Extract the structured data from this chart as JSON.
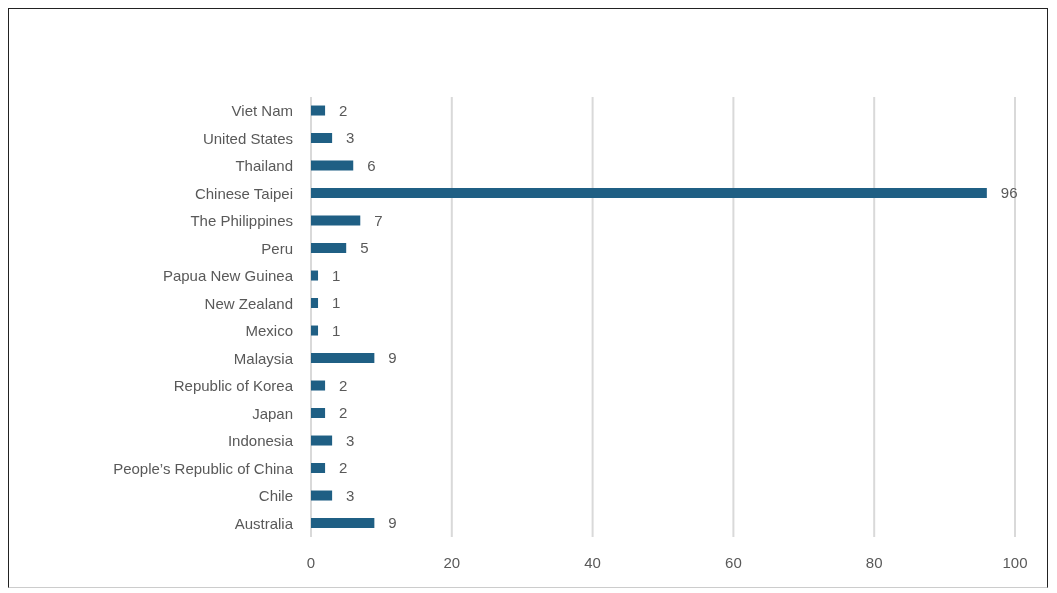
{
  "chart_data": {
    "type": "bar",
    "orientation": "horizontal",
    "categories": [
      "Viet Nam",
      "United States",
      "Thailand",
      "Chinese Taipei",
      "The Philippines",
      "Peru",
      "Papua New Guinea",
      "New Zealand",
      "Mexico",
      "Malaysia",
      "Republic of Korea",
      "Japan",
      "Indonesia",
      "People’s Republic of China",
      "Chile",
      "Australia"
    ],
    "values": [
      2,
      3,
      6,
      96,
      7,
      5,
      1,
      1,
      1,
      9,
      2,
      2,
      3,
      2,
      3,
      9
    ],
    "color": "#1f5f84",
    "xlim": [
      0,
      100
    ],
    "xticks": [
      0,
      20,
      40,
      60,
      80,
      100
    ],
    "grid": "x",
    "data_labels": true
  }
}
